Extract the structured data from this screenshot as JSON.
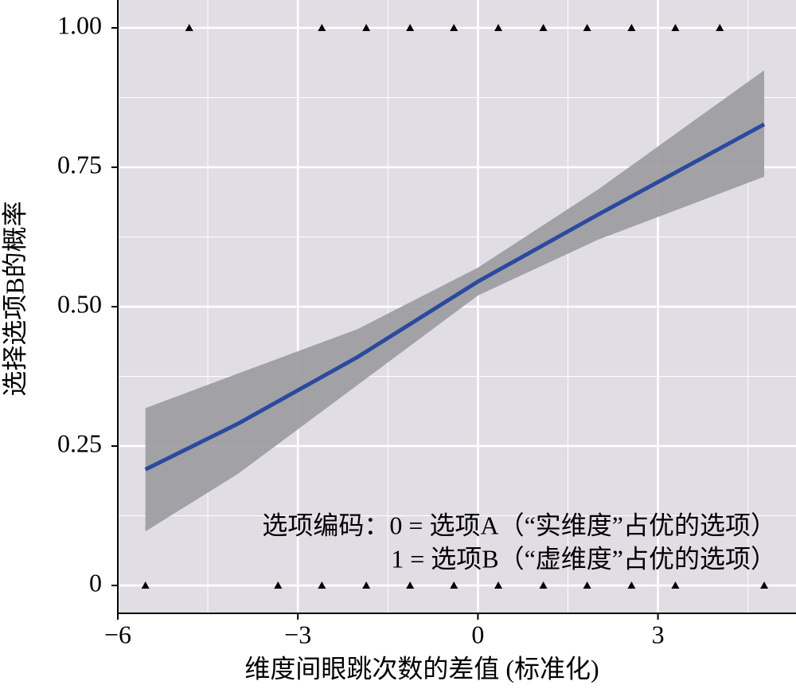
{
  "chart_data": {
    "type": "scatter",
    "x_label": "维度间眼跳次数的差值 (标准化)",
    "y_label": "选择选项B的概率",
    "xlim": [
      -6,
      5.3
    ],
    "ylim": [
      -0.05,
      1.05
    ],
    "xticks": [
      {
        "value": -6,
        "label": "−6"
      },
      {
        "value": -3,
        "label": "−3"
      },
      0,
      3
    ],
    "yticks": [
      0,
      {
        "value": 0.25,
        "label": "0.25"
      },
      {
        "value": 0.5,
        "label": "0.50"
      },
      {
        "value": 0.75,
        "label": "0.75"
      },
      {
        "value": 1,
        "label": "1.00"
      }
    ],
    "minor_xticks": [
      -4.5,
      -1.5,
      1.5,
      4.5
    ],
    "minor_yticks": [
      0.125,
      0.375,
      0.625,
      0.875
    ],
    "grid": true,
    "background": "#e1dde4",
    "points": {
      "marker": "triangle",
      "color": "#000000",
      "x": [
        -4.81,
        -2.6,
        -1.86,
        -1.13,
        -0.4,
        0.34,
        1.09,
        1.82,
        2.56,
        3.29,
        4.03,
        -5.54,
        -3.33,
        -2.6,
        -1.86,
        -1.13,
        -0.4,
        0.34,
        1.09,
        1.82,
        2.56,
        3.29,
        4.77
      ],
      "y": [
        1,
        1,
        1,
        1,
        1,
        1,
        1,
        1,
        1,
        1,
        1,
        0,
        0,
        0,
        0,
        0,
        0,
        0,
        0,
        0,
        0,
        0,
        0
      ]
    },
    "fit": {
      "color": "#2b4a9e",
      "band_color": "#9b9a9f",
      "x": [
        -5.54,
        -4,
        -2,
        0,
        2,
        4.77
      ],
      "y": [
        0.208,
        0.29,
        0.41,
        0.545,
        0.665,
        0.827
      ],
      "lower": [
        0.097,
        0.2,
        0.36,
        0.52,
        0.62,
        0.733
      ],
      "upper": [
        0.318,
        0.38,
        0.46,
        0.57,
        0.71,
        0.924
      ]
    },
    "annotations": [
      "选项编码：0 = 选项A（“实维度”占优的选项）",
      "1 = 选项B（“虚维度”占优的选项）"
    ]
  }
}
